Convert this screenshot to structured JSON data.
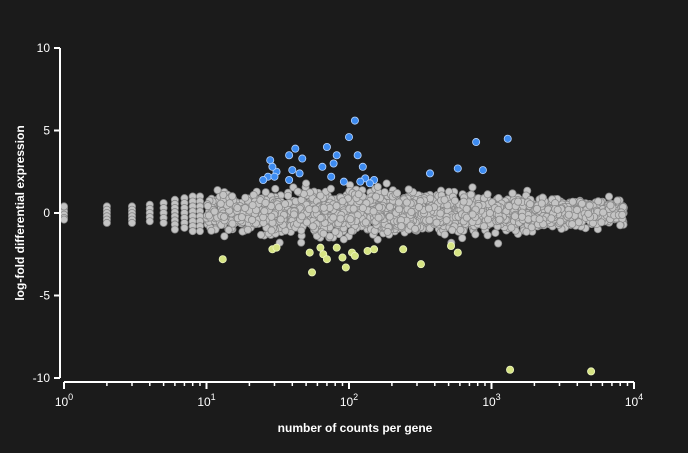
{
  "colors": {
    "background": "#1b1b1b",
    "axis": "#ffffff",
    "neutral_fill": "#c4c4c4",
    "neutral_stroke": "#8a8a8a",
    "up_fill": "#3d8bf0",
    "up_stroke": "#b9d6ff",
    "down_fill": "#d6e483",
    "down_stroke": "#eef6c0"
  },
  "chart_data": {
    "type": "scatter",
    "title": "",
    "xlabel": "number of counts per gene",
    "ylabel": "log-fold differential expression",
    "x_scale": "log",
    "xlim": [
      1,
      10000
    ],
    "ylim": [
      -10,
      10
    ],
    "x_ticks": [
      {
        "value": 1,
        "base": "10",
        "exp": "0"
      },
      {
        "value": 10,
        "base": "10",
        "exp": "1"
      },
      {
        "value": 100,
        "base": "10",
        "exp": "2"
      },
      {
        "value": 1000,
        "base": "10",
        "exp": "3"
      },
      {
        "value": 10000,
        "base": "10",
        "exp": "4"
      }
    ],
    "y_ticks": [
      {
        "value": 10,
        "label": "10"
      },
      {
        "value": 5,
        "label": "5"
      },
      {
        "value": 0,
        "label": "0"
      },
      {
        "value": -5,
        "label": "-5"
      },
      {
        "value": -10,
        "label": "-10"
      }
    ],
    "grid": false,
    "legend": "none",
    "series": [
      {
        "values": [
          [
            1,
            0.3
          ],
          [
            1,
            0.1
          ],
          [
            1,
            -0.1
          ],
          [
            1,
            -0.3
          ],
          [
            1,
            0.4
          ],
          [
            1,
            -0.4
          ],
          [
            2,
            0.4
          ],
          [
            2,
            0.2
          ],
          [
            2,
            0
          ],
          [
            2,
            -0.2
          ],
          [
            2,
            -0.4
          ],
          [
            2,
            -0.6
          ],
          [
            3,
            0.4
          ],
          [
            3,
            0.2
          ],
          [
            3,
            0
          ],
          [
            3,
            -0.2
          ],
          [
            3,
            -0.4
          ],
          [
            3,
            -0.6
          ],
          [
            4,
            0.5
          ],
          [
            4,
            0.25
          ],
          [
            4,
            0
          ],
          [
            4,
            -0.25
          ],
          [
            4,
            -0.5
          ],
          [
            5,
            0.6
          ],
          [
            5,
            0.3
          ],
          [
            5,
            0
          ],
          [
            5,
            -0.3
          ],
          [
            5,
            -0.6
          ],
          [
            6,
            0.8
          ],
          [
            6,
            0.55
          ],
          [
            6,
            0.3
          ],
          [
            6,
            0.05
          ],
          [
            6,
            -0.2
          ],
          [
            6,
            -0.45
          ],
          [
            6,
            -0.7
          ],
          [
            6,
            -1
          ],
          [
            7,
            0.9
          ],
          [
            7,
            0.6
          ],
          [
            7,
            0.3
          ],
          [
            7,
            0
          ],
          [
            7,
            -0.3
          ],
          [
            7,
            -0.6
          ],
          [
            7,
            -0.9
          ],
          [
            8,
            1
          ],
          [
            8,
            0.7
          ],
          [
            8,
            0.4
          ],
          [
            8,
            0.1
          ],
          [
            8,
            -0.2
          ],
          [
            8,
            -0.5
          ],
          [
            8,
            -0.8
          ],
          [
            8,
            -1.1
          ],
          [
            9,
            1
          ],
          [
            9,
            0.7
          ],
          [
            9,
            0.4
          ],
          [
            9,
            0.1
          ],
          [
            9,
            -0.2
          ],
          [
            9,
            -0.5
          ],
          [
            9,
            -0.8
          ],
          [
            9,
            -1.1
          ]
        ],
        "color": "#c4c4c4"
      },
      {
        "values": [
          [
            28,
            3.2
          ],
          [
            31,
            2.5
          ],
          [
            27,
            2.2
          ],
          [
            25,
            2
          ],
          [
            29,
            2.8
          ],
          [
            30,
            2.2
          ],
          [
            38,
            3.5
          ],
          [
            42,
            3.9
          ],
          [
            47,
            3.3
          ],
          [
            40,
            2.6
          ],
          [
            45,
            2.4
          ],
          [
            38,
            2
          ],
          [
            70,
            4
          ],
          [
            65,
            2.8
          ],
          [
            75,
            2.2
          ],
          [
            78,
            3
          ],
          [
            82,
            3.5
          ],
          [
            92,
            1.9
          ],
          [
            100,
            4.6
          ],
          [
            110,
            5.6
          ],
          [
            115,
            3.5
          ],
          [
            125,
            2.8
          ],
          [
            130,
            2.1
          ],
          [
            120,
            1.9
          ],
          [
            150,
            2
          ],
          [
            140,
            1.8
          ],
          [
            370,
            2.4
          ],
          [
            580,
            2.7
          ],
          [
            780,
            4.3
          ],
          [
            870,
            2.6
          ],
          [
            1300,
            4.5
          ]
        ],
        "color": "#3d8bf0"
      },
      {
        "values": [
          [
            13,
            -2.8
          ],
          [
            29,
            -2.2
          ],
          [
            31,
            -2.1
          ],
          [
            53,
            -2.4
          ],
          [
            55,
            -3.6
          ],
          [
            63,
            -2.1
          ],
          [
            66,
            -2.5
          ],
          [
            70,
            -2.8
          ],
          [
            82,
            -2.1
          ],
          [
            90,
            -2.7
          ],
          [
            95,
            -3.3
          ],
          [
            105,
            -2.4
          ],
          [
            110,
            -2.6
          ],
          [
            135,
            -2.3
          ],
          [
            150,
            -2.2
          ],
          [
            240,
            -2.2
          ],
          [
            320,
            -3.1
          ],
          [
            520,
            -2
          ],
          [
            580,
            -2.4
          ],
          [
            1350,
            -9.5
          ],
          [
            5000,
            -9.6
          ]
        ],
        "color": "#d6e483"
      }
    ]
  }
}
